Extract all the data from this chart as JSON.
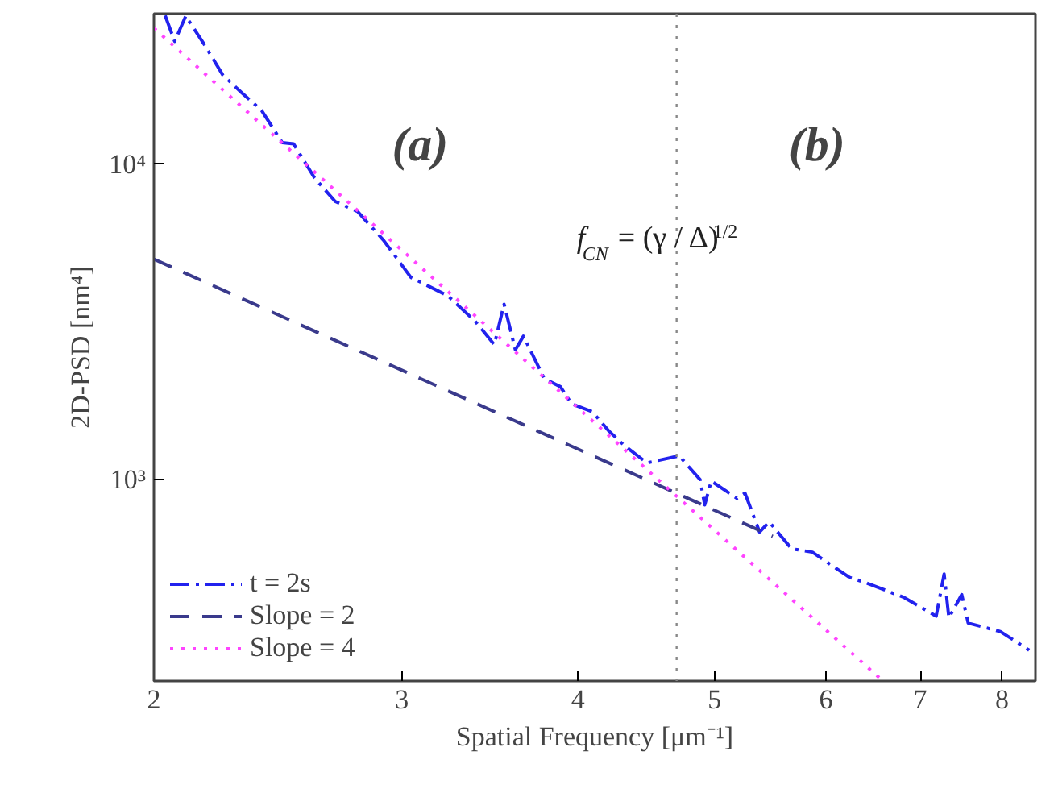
{
  "chart_data": {
    "type": "line",
    "xlabel": "Spatial Frequency [μm⁻¹]",
    "ylabel": "2D-PSD [nm⁴]",
    "log": "xy",
    "xlim": [
      2,
      8.45
    ],
    "ylim": [
      230,
      30000
    ],
    "xticks": [
      2,
      3,
      4,
      5,
      6,
      7,
      8
    ],
    "yticks": [
      {
        "value": 1000,
        "label": "10³"
      },
      {
        "value": 10000,
        "label": "10⁴"
      }
    ],
    "grid": false,
    "legend": "bottom left",
    "marker": "none",
    "annotations": [
      "(a)",
      "(b)"
    ],
    "ref_lines": [
      {
        "axis": "x",
        "value": 4.7,
        "label": "f$_{CN}$ = (γ / Δ)$^{1/2}$",
        "color": "#888888",
        "line_style": "dotted"
      }
    ],
    "series": [
      {
        "name": "t = 2s",
        "color": "#2222ee",
        "line_style": "dashdot",
        "x": [
          2.037,
          2.069,
          2.107,
          2.175,
          2.238,
          2.31,
          2.385,
          2.467,
          2.513,
          2.6,
          2.69,
          2.79,
          2.911,
          3.044,
          3.233,
          3.381,
          3.489,
          3.545,
          3.611,
          3.659,
          3.786,
          3.887,
          3.959,
          4.096,
          4.205,
          4.317,
          4.478,
          4.72,
          4.884,
          4.921,
          4.974,
          5.187,
          5.256,
          5.383,
          5.468,
          5.671,
          5.868,
          6.234,
          6.399,
          6.818,
          7.184,
          7.278,
          7.335,
          7.491,
          7.57,
          7.979,
          8.363
        ],
        "values": [
          29600,
          24500,
          29500,
          23700,
          19200,
          16800,
          14800,
          11700,
          11600,
          9060,
          7620,
          7080,
          5740,
          4380,
          3830,
          3180,
          2680,
          3600,
          2580,
          2850,
          2090,
          1970,
          1740,
          1640,
          1430,
          1280,
          1130,
          1190,
          1000,
          832,
          990,
          873,
          906,
          682,
          735,
          604,
          589,
          490,
          472,
          423,
          369,
          502,
          365,
          432,
          351,
          330,
          288
        ]
      },
      {
        "name": "Slope = 2",
        "color": "#3a3a8c",
        "line_style": "dashed",
        "x": [
          2,
          5.5
        ],
        "values": [
          5000,
          661
        ]
      },
      {
        "name": "Slope = 4",
        "color": "#ff44ff",
        "line_style": "dotted",
        "x": [
          2,
          6.55
        ],
        "values": [
          27000,
          235
        ]
      }
    ]
  }
}
